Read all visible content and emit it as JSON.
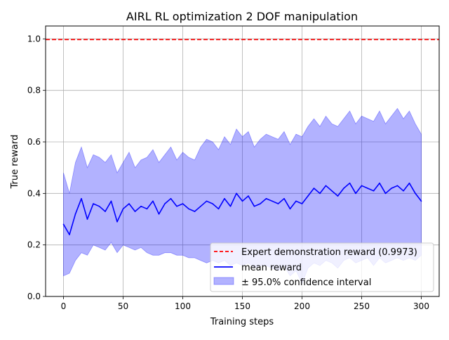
{
  "chart_data": {
    "type": "line",
    "title": "AIRL RL optimization 2 DOF manipulation",
    "xlabel": "Training steps",
    "ylabel": "True reward",
    "xlim": [
      -15,
      315
    ],
    "ylim": [
      0.0,
      1.05
    ],
    "xticks": [
      0,
      50,
      100,
      150,
      200,
      250,
      300
    ],
    "xtick_labels": [
      "0",
      "50",
      "100",
      "150",
      "200",
      "250",
      "300"
    ],
    "yticks": [
      0.0,
      0.2,
      0.4,
      0.6,
      0.8,
      1.0
    ],
    "ytick_labels": [
      "0.0",
      "0.2",
      "0.4",
      "0.6",
      "0.8",
      "1.0"
    ],
    "grid": true,
    "legend_position": "lower-right",
    "reference_line": {
      "name": "Expert demonstration reward (0.9973)",
      "y": 0.9973,
      "color": "#ff0000",
      "style": "dashed"
    },
    "series": [
      {
        "name": "mean reward",
        "color": "#0000ff",
        "x": [
          0,
          5,
          10,
          15,
          20,
          25,
          30,
          35,
          40,
          45,
          50,
          55,
          60,
          65,
          70,
          75,
          80,
          85,
          90,
          95,
          100,
          105,
          110,
          115,
          120,
          125,
          130,
          135,
          140,
          145,
          150,
          155,
          160,
          165,
          170,
          175,
          180,
          185,
          190,
          195,
          200,
          205,
          210,
          215,
          220,
          225,
          230,
          235,
          240,
          245,
          250,
          255,
          260,
          265,
          270,
          275,
          280,
          285,
          290,
          295,
          300
        ],
        "y": [
          0.28,
          0.24,
          0.32,
          0.38,
          0.3,
          0.36,
          0.35,
          0.33,
          0.37,
          0.29,
          0.34,
          0.36,
          0.33,
          0.35,
          0.34,
          0.37,
          0.32,
          0.36,
          0.38,
          0.35,
          0.36,
          0.34,
          0.33,
          0.35,
          0.37,
          0.36,
          0.34,
          0.38,
          0.35,
          0.4,
          0.37,
          0.39,
          0.35,
          0.36,
          0.38,
          0.37,
          0.36,
          0.38,
          0.34,
          0.37,
          0.36,
          0.39,
          0.42,
          0.4,
          0.43,
          0.41,
          0.39,
          0.42,
          0.44,
          0.4,
          0.43,
          0.42,
          0.41,
          0.44,
          0.4,
          0.42,
          0.43,
          0.41,
          0.44,
          0.4,
          0.37
        ]
      }
    ],
    "confidence_band": {
      "name": "± 95.0% confidence interval",
      "color": "#0000ff",
      "lower": [
        0.08,
        0.09,
        0.14,
        0.17,
        0.16,
        0.2,
        0.19,
        0.18,
        0.21,
        0.17,
        0.2,
        0.19,
        0.18,
        0.19,
        0.17,
        0.16,
        0.16,
        0.17,
        0.17,
        0.16,
        0.16,
        0.15,
        0.15,
        0.14,
        0.13,
        0.14,
        0.13,
        0.14,
        0.12,
        0.13,
        0.12,
        0.13,
        0.11,
        0.12,
        0.12,
        0.11,
        0.1,
        0.12,
        0.08,
        0.1,
        0.05,
        0.11,
        0.13,
        0.12,
        0.14,
        0.13,
        0.11,
        0.14,
        0.15,
        0.13,
        0.14,
        0.15,
        0.12,
        0.15,
        0.13,
        0.14,
        0.15,
        0.14,
        0.15,
        0.14,
        0.16
      ],
      "upper": [
        0.48,
        0.4,
        0.52,
        0.58,
        0.5,
        0.55,
        0.54,
        0.52,
        0.55,
        0.48,
        0.52,
        0.56,
        0.5,
        0.53,
        0.54,
        0.57,
        0.52,
        0.55,
        0.58,
        0.53,
        0.56,
        0.54,
        0.53,
        0.58,
        0.61,
        0.6,
        0.57,
        0.62,
        0.59,
        0.65,
        0.62,
        0.64,
        0.58,
        0.61,
        0.63,
        0.62,
        0.61,
        0.64,
        0.59,
        0.63,
        0.62,
        0.66,
        0.69,
        0.66,
        0.7,
        0.67,
        0.66,
        0.69,
        0.72,
        0.67,
        0.7,
        0.69,
        0.68,
        0.72,
        0.67,
        0.7,
        0.73,
        0.69,
        0.72,
        0.67,
        0.63
      ]
    }
  }
}
